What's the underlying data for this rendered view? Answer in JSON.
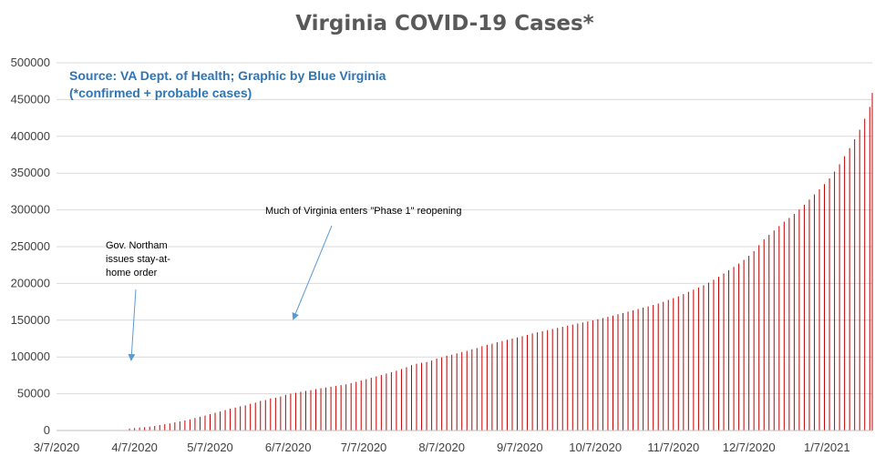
{
  "chart_data": {
    "type": "bar",
    "title": "Virginia COVID-19 Cases*",
    "source_line1": "Source: VA Dept. of Health; Graphic by Blue Virginia",
    "source_line2": "(*confirmed + probable cases)",
    "ylim": [
      0,
      500000
    ],
    "y_ticks": [
      "0",
      "50000",
      "100000",
      "150000",
      "200000",
      "250000",
      "300000",
      "350000",
      "400000",
      "450000",
      "500000"
    ],
    "x_ticks": [
      "3/7/2020",
      "4/7/2020",
      "5/7/2020",
      "6/7/2020",
      "7/7/2020",
      "8/7/2020",
      "9/7/2020",
      "10/7/2020",
      "11/7/2020",
      "12/7/2020",
      "1/7/2021"
    ],
    "x_range": [
      "2020-03-07",
      "2021-01-25"
    ],
    "bar_color": "#c00000",
    "grid": true,
    "series": [
      {
        "points": [
          [
            "2020-04-05",
            2637
          ],
          [
            "2020-04-07",
            3333
          ],
          [
            "2020-04-09",
            4042
          ],
          [
            "2020-04-11",
            4509
          ],
          [
            "2020-04-13",
            5274
          ],
          [
            "2020-04-15",
            6171
          ],
          [
            "2020-04-17",
            7491
          ],
          [
            "2020-04-19",
            8537
          ],
          [
            "2020-04-21",
            9630
          ],
          [
            "2020-04-23",
            10998
          ],
          [
            "2020-04-25",
            12366
          ],
          [
            "2020-04-27",
            13535
          ],
          [
            "2020-04-29",
            14961
          ],
          [
            "2020-05-01",
            16901
          ],
          [
            "2020-05-03",
            18671
          ],
          [
            "2020-05-05",
            20256
          ],
          [
            "2020-05-07",
            22342
          ],
          [
            "2020-05-09",
            24081
          ],
          [
            "2020-05-11",
            25800
          ],
          [
            "2020-05-13",
            27813
          ],
          [
            "2020-05-15",
            29683
          ],
          [
            "2020-05-17",
            31140
          ],
          [
            "2020-05-19",
            32908
          ],
          [
            "2020-05-21",
            34137
          ],
          [
            "2020-05-23",
            36244
          ],
          [
            "2020-05-25",
            38000
          ],
          [
            "2020-05-27",
            40249
          ],
          [
            "2020-05-29",
            41401
          ],
          [
            "2020-05-31",
            43611
          ],
          [
            "2020-06-02",
            44607
          ],
          [
            "2020-06-04",
            46239
          ],
          [
            "2020-06-06",
            48532
          ],
          [
            "2020-06-08",
            50000
          ],
          [
            "2020-06-10",
            51251
          ],
          [
            "2020-06-12",
            52647
          ],
          [
            "2020-06-14",
            53869
          ],
          [
            "2020-06-16",
            54886
          ],
          [
            "2020-06-18",
            56238
          ],
          [
            "2020-06-20",
            57443
          ],
          [
            "2020-06-22",
            58465
          ],
          [
            "2020-06-24",
            59514
          ],
          [
            "2020-06-26",
            60570
          ],
          [
            "2020-06-28",
            61736
          ],
          [
            "2020-06-30",
            62787
          ],
          [
            "2020-07-02",
            64393
          ],
          [
            "2020-07-04",
            66102
          ],
          [
            "2020-07-06",
            67988
          ],
          [
            "2020-07-08",
            69782
          ],
          [
            "2020-07-10",
            71642
          ],
          [
            "2020-07-12",
            73527
          ],
          [
            "2020-07-14",
            75433
          ],
          [
            "2020-07-16",
            77430
          ],
          [
            "2020-07-18",
            79371
          ],
          [
            "2020-07-20",
            81237
          ],
          [
            "2020-07-22",
            83609
          ],
          [
            "2020-07-24",
            86072
          ],
          [
            "2020-07-26",
            88904
          ],
          [
            "2020-07-28",
            90801
          ],
          [
            "2020-07-30",
            92000
          ],
          [
            "2020-08-01",
            93106
          ],
          [
            "2020-08-03",
            95049
          ],
          [
            "2020-08-05",
            97882
          ],
          [
            "2020-08-07",
            99500
          ],
          [
            "2020-08-09",
            101745
          ],
          [
            "2020-08-11",
            103000
          ],
          [
            "2020-08-13",
            104838
          ],
          [
            "2020-08-15",
            106687
          ],
          [
            "2020-08-17",
            108282
          ],
          [
            "2020-08-19",
            110450
          ],
          [
            "2020-08-21",
            112072
          ],
          [
            "2020-08-23",
            114635
          ],
          [
            "2020-08-25",
            116579
          ],
          [
            "2020-08-27",
            118000
          ],
          [
            "2020-08-29",
            119966
          ],
          [
            "2020-08-31",
            121615
          ],
          [
            "2020-09-02",
            123289
          ],
          [
            "2020-09-04",
            125000
          ],
          [
            "2020-09-06",
            126477
          ],
          [
            "2020-09-08",
            128274
          ],
          [
            "2020-09-10",
            130000
          ],
          [
            "2020-09-12",
            132000
          ],
          [
            "2020-09-14",
            133500
          ],
          [
            "2020-09-16",
            135000
          ],
          [
            "2020-09-18",
            136500
          ],
          [
            "2020-09-20",
            138000
          ],
          [
            "2020-09-22",
            139500
          ],
          [
            "2020-09-24",
            141000
          ],
          [
            "2020-09-26",
            142500
          ],
          [
            "2020-09-28",
            144000
          ],
          [
            "2020-09-30",
            145500
          ],
          [
            "2020-10-02",
            146900
          ],
          [
            "2020-10-04",
            148300
          ],
          [
            "2020-10-06",
            149800
          ],
          [
            "2020-10-08",
            151300
          ],
          [
            "2020-10-10",
            152900
          ],
          [
            "2020-10-12",
            154500
          ],
          [
            "2020-10-14",
            156200
          ],
          [
            "2020-10-16",
            158000
          ],
          [
            "2020-10-18",
            159800
          ],
          [
            "2020-10-20",
            161600
          ],
          [
            "2020-10-22",
            163400
          ],
          [
            "2020-10-24",
            165200
          ],
          [
            "2020-10-26",
            167000
          ],
          [
            "2020-10-28",
            168800
          ],
          [
            "2020-10-30",
            170700
          ],
          [
            "2020-11-01",
            172700
          ],
          [
            "2020-11-03",
            175000
          ],
          [
            "2020-11-05",
            177500
          ],
          [
            "2020-11-07",
            180000
          ],
          [
            "2020-11-09",
            182500
          ],
          [
            "2020-11-11",
            185500
          ],
          [
            "2020-11-13",
            188500
          ],
          [
            "2020-11-15",
            191500
          ],
          [
            "2020-11-17",
            194500
          ],
          [
            "2020-11-19",
            197500
          ],
          [
            "2020-11-21",
            201000
          ],
          [
            "2020-11-23",
            205000
          ],
          [
            "2020-11-25",
            209000
          ],
          [
            "2020-11-27",
            213500
          ],
          [
            "2020-11-29",
            218000
          ],
          [
            "2020-12-01",
            222500
          ],
          [
            "2020-12-03",
            227000
          ],
          [
            "2020-12-05",
            232000
          ],
          [
            "2020-12-07",
            237500
          ],
          [
            "2020-12-09",
            244000
          ],
          [
            "2020-12-11",
            252000
          ],
          [
            "2020-12-13",
            260000
          ],
          [
            "2020-12-15",
            266000
          ],
          [
            "2020-12-17",
            272000
          ],
          [
            "2020-12-19",
            278000
          ],
          [
            "2020-12-21",
            284000
          ],
          [
            "2020-12-23",
            289000
          ],
          [
            "2020-12-25",
            294500
          ],
          [
            "2020-12-27",
            300500
          ],
          [
            "2020-12-29",
            307000
          ],
          [
            "2020-12-31",
            314000
          ],
          [
            "2021-01-02",
            321000
          ],
          [
            "2021-01-04",
            328000
          ],
          [
            "2021-01-06",
            335000
          ],
          [
            "2021-01-08",
            343000
          ],
          [
            "2021-01-10",
            352000
          ],
          [
            "2021-01-12",
            362000
          ],
          [
            "2021-01-14",
            373000
          ],
          [
            "2021-01-16",
            384000
          ],
          [
            "2021-01-18",
            396000
          ],
          [
            "2021-01-20",
            409000
          ],
          [
            "2021-01-22",
            424000
          ],
          [
            "2021-01-24",
            440000
          ],
          [
            "2021-01-25",
            459000
          ]
        ]
      }
    ],
    "annotations": [
      {
        "lines": [
          "Gov. Northam",
          "issues stay-at-",
          "home order"
        ]
      },
      {
        "lines": [
          "Much of Virginia enters \"Phase 1\" reopening"
        ]
      }
    ]
  }
}
